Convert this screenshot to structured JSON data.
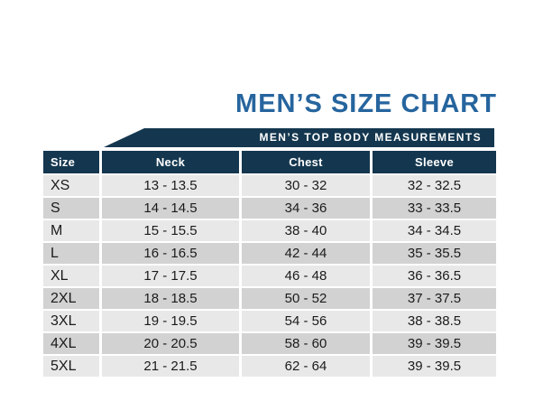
{
  "title": "MEN’S SIZE CHART",
  "banner": "MEN’S TOP BODY MEASUREMENTS",
  "colors": {
    "title_blue": "#26659e",
    "banner_navy": "#14374f",
    "header_navy": "#14374f",
    "row_light": "#e8e8e8",
    "row_dark": "#d2d2d2",
    "cell_text": "#1b1b1b"
  },
  "chart_data": {
    "type": "table",
    "title": "MEN’S SIZE CHART",
    "subtitle": "MEN’S TOP BODY MEASUREMENTS",
    "columns": [
      "Size",
      "Neck",
      "Chest",
      "Sleeve"
    ],
    "rows": [
      {
        "size": "XS",
        "neck": "13 - 13.5",
        "chest": "30 - 32",
        "sleeve": "32 - 32.5"
      },
      {
        "size": "S",
        "neck": "14 - 14.5",
        "chest": "34 - 36",
        "sleeve": "33 - 33.5"
      },
      {
        "size": "M",
        "neck": "15 - 15.5",
        "chest": "38 - 40",
        "sleeve": "34 - 34.5"
      },
      {
        "size": "L",
        "neck": "16 - 16.5",
        "chest": "42 - 44",
        "sleeve": "35 - 35.5"
      },
      {
        "size": "XL",
        "neck": "17 - 17.5",
        "chest": "46 - 48",
        "sleeve": "36 - 36.5"
      },
      {
        "size": "2XL",
        "neck": "18 - 18.5",
        "chest": "50 - 52",
        "sleeve": "37 - 37.5"
      },
      {
        "size": "3XL",
        "neck": "19 - 19.5",
        "chest": "54 - 56",
        "sleeve": "38 - 38.5"
      },
      {
        "size": "4XL",
        "neck": "20 - 20.5",
        "chest": "58 - 60",
        "sleeve": "39 - 39.5"
      },
      {
        "size": "5XL",
        "neck": "21 - 21.5",
        "chest": "62 - 64",
        "sleeve": "39 - 39.5"
      }
    ]
  }
}
